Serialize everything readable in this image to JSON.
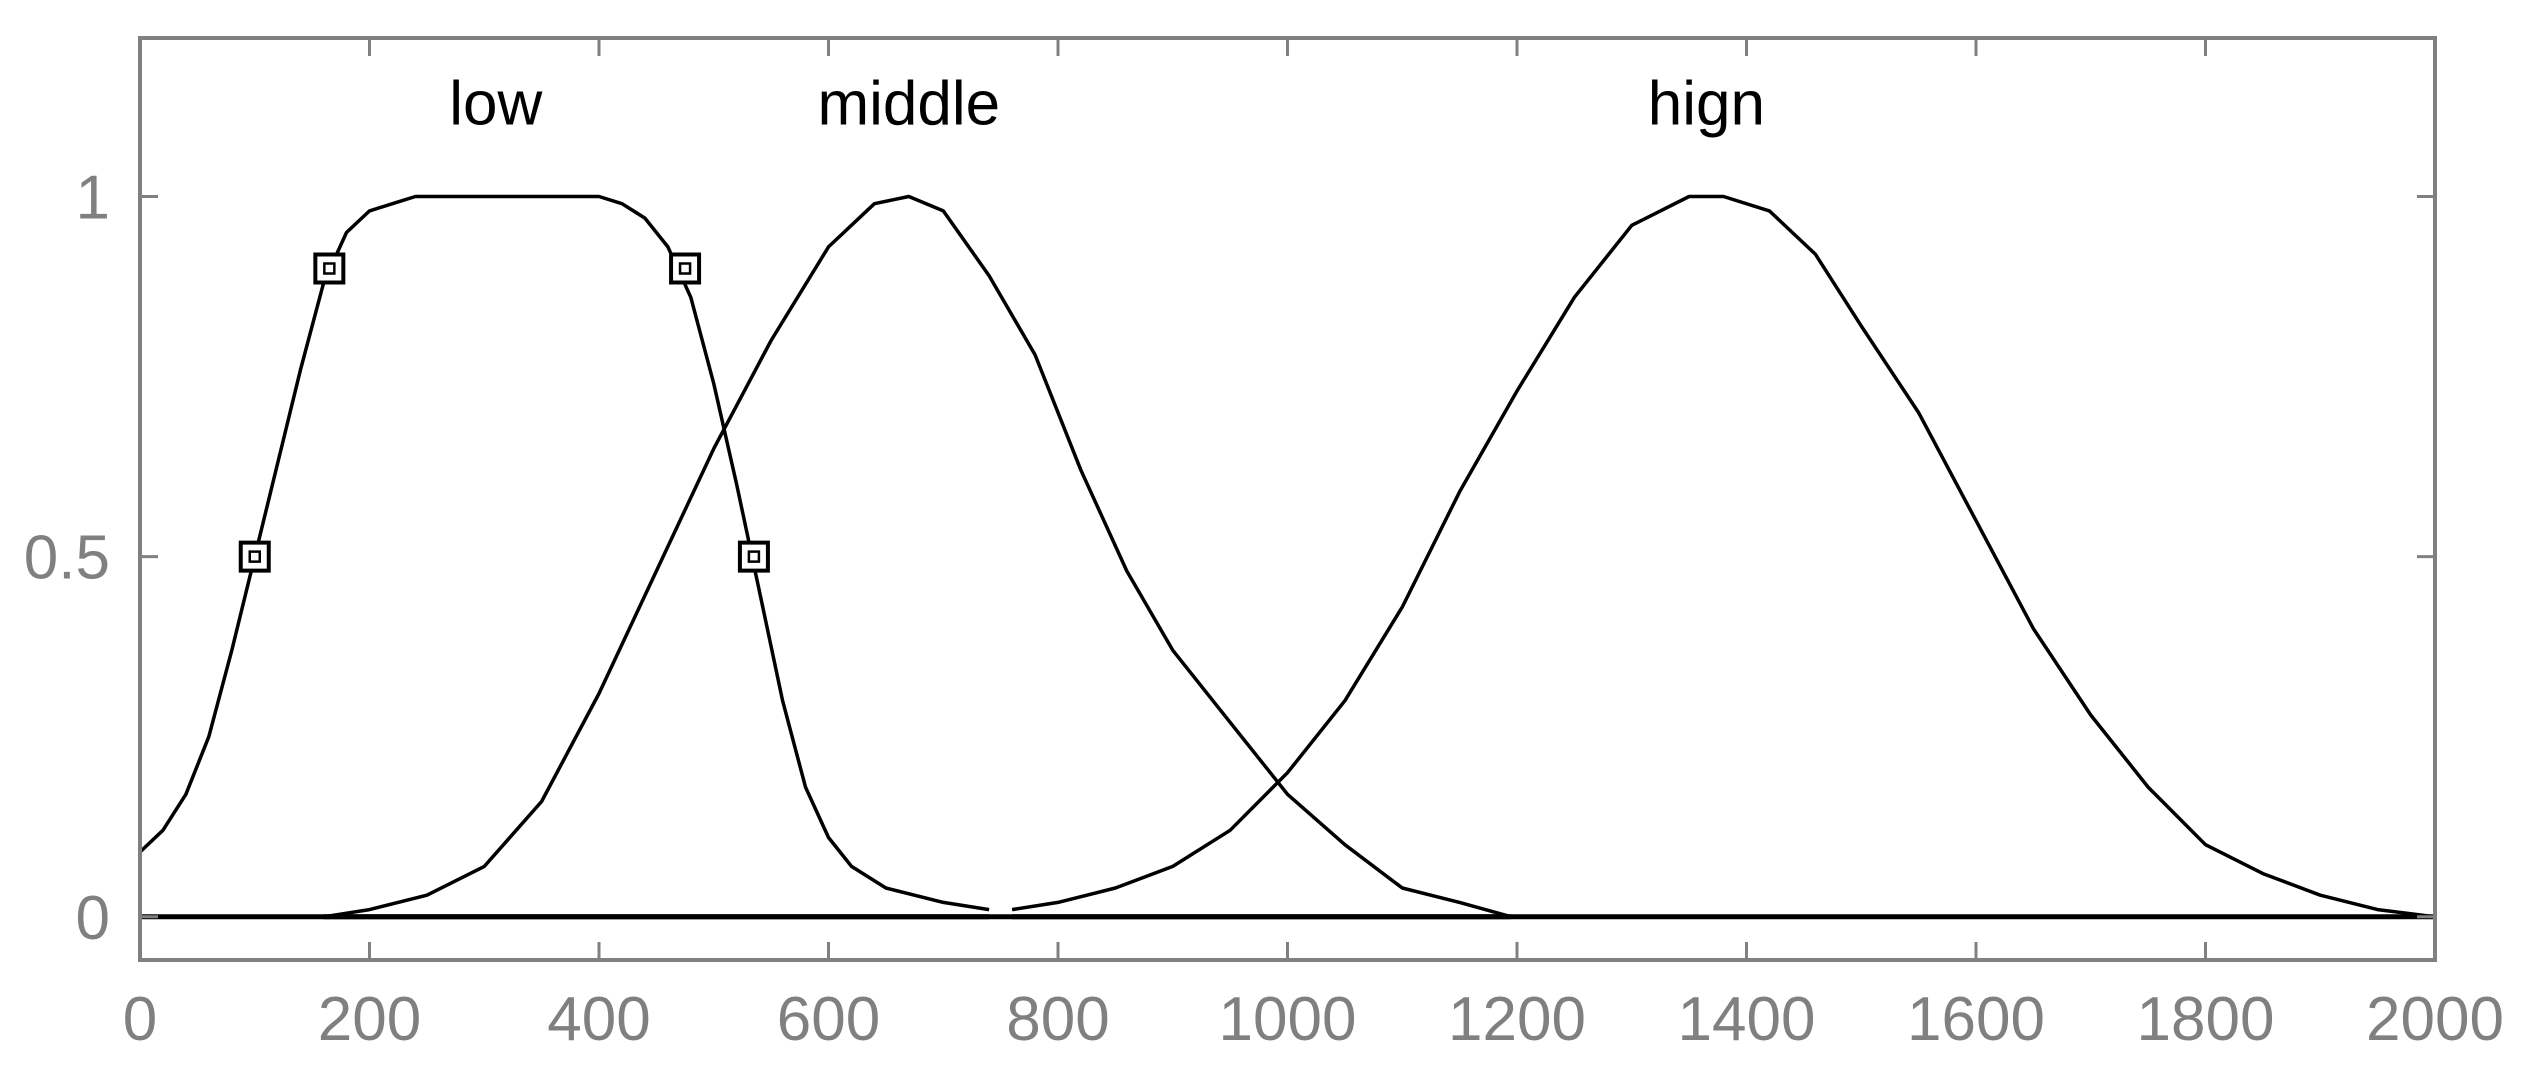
{
  "chart_data": {
    "type": "line",
    "title": "",
    "xlabel": "",
    "ylabel": "",
    "xlim": [
      0,
      2000
    ],
    "ylim": [
      -0.06,
      1.22
    ],
    "grid": false,
    "legend": "none",
    "xticks": [
      0,
      200,
      400,
      600,
      800,
      1000,
      1200,
      1400,
      1600,
      1800,
      2000
    ],
    "yticks": [
      0,
      0.5,
      1
    ],
    "xtick_labels": [
      "0",
      "200",
      "400",
      "600",
      "800",
      "1000",
      "1200",
      "1400",
      "1600",
      "1800",
      "2000"
    ],
    "ytick_labels": [
      "0",
      "0.5",
      "1"
    ],
    "series": [
      {
        "name": "low",
        "label_at": {
          "x": 310,
          "y": 1.1
        },
        "x": [
          0,
          20,
          40,
          60,
          80,
          100,
          120,
          140,
          160,
          180,
          200,
          220,
          240,
          260,
          300,
          350,
          400,
          420,
          440,
          460,
          480,
          500,
          520,
          540,
          560,
          580,
          600,
          620,
          650,
          700,
          740
        ],
        "y": [
          0.09,
          0.12,
          0.17,
          0.25,
          0.37,
          0.5,
          0.63,
          0.76,
          0.88,
          0.95,
          0.98,
          0.99,
          1.0,
          1.0,
          1.0,
          1.0,
          1.0,
          0.99,
          0.97,
          0.93,
          0.86,
          0.74,
          0.6,
          0.45,
          0.3,
          0.18,
          0.11,
          0.07,
          0.04,
          0.02,
          0.01
        ],
        "markers": [
          {
            "x": 100,
            "y": 0.5
          },
          {
            "x": 165,
            "y": 0.9
          },
          {
            "x": 475,
            "y": 0.9
          },
          {
            "x": 535,
            "y": 0.5
          }
        ]
      },
      {
        "name": "middle",
        "label_at": {
          "x": 670,
          "y": 1.1
        },
        "x": [
          160,
          200,
          250,
          300,
          350,
          400,
          450,
          500,
          550,
          600,
          640,
          670,
          700,
          740,
          780,
          820,
          860,
          900,
          950,
          1000,
          1050,
          1100,
          1150,
          1195
        ],
        "y": [
          0.0,
          0.01,
          0.03,
          0.07,
          0.16,
          0.31,
          0.48,
          0.65,
          0.8,
          0.93,
          0.99,
          1.0,
          0.98,
          0.89,
          0.78,
          0.62,
          0.48,
          0.37,
          0.27,
          0.17,
          0.1,
          0.04,
          0.02,
          0.0
        ]
      },
      {
        "name": "hign",
        "label_at": {
          "x": 1365,
          "y": 1.1
        },
        "x": [
          760,
          800,
          850,
          900,
          950,
          1000,
          1050,
          1100,
          1150,
          1200,
          1250,
          1300,
          1350,
          1380,
          1420,
          1460,
          1500,
          1550,
          1600,
          1650,
          1700,
          1750,
          1800,
          1850,
          1900,
          1950,
          2000
        ],
        "y": [
          0.01,
          0.02,
          0.04,
          0.07,
          0.12,
          0.2,
          0.3,
          0.43,
          0.59,
          0.73,
          0.86,
          0.96,
          1.0,
          1.0,
          0.98,
          0.92,
          0.82,
          0.7,
          0.55,
          0.4,
          0.28,
          0.18,
          0.1,
          0.06,
          0.03,
          0.01,
          0.0
        ]
      }
    ]
  }
}
